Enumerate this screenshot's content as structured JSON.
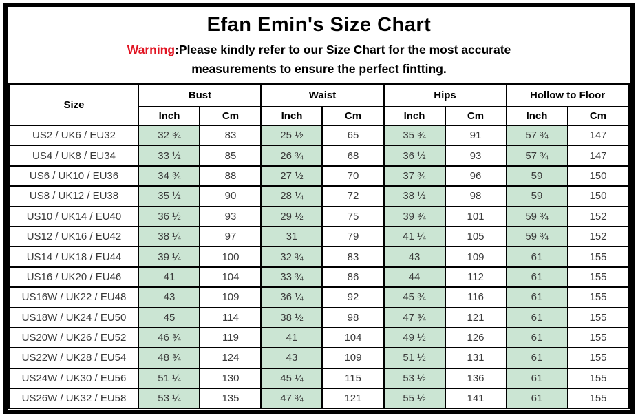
{
  "page": {
    "title": "Efan Emin's Size Chart",
    "warning": {
      "prefix": "Warning",
      "line1_rest": ":Please kindly refer to our Size Chart for the most accurate",
      "line2": "measurements to ensure the perfect fintting."
    }
  },
  "colors": {
    "accent_green": "#cbe5d3",
    "warning_red": "#e11422",
    "border_black": "#000000"
  },
  "table": {
    "size_header": "Size",
    "group_headers": [
      "Bust",
      "Waist",
      "Hips",
      "Hollow to Floor"
    ],
    "unit_headers": [
      "Inch",
      "Cm"
    ],
    "rows": [
      {
        "size": "US2 / UK6 / EU32",
        "values": [
          "32 ¾",
          "83",
          "25 ½",
          "65",
          "35 ¾",
          "91",
          "57 ¾",
          "147"
        ]
      },
      {
        "size": "US4 / UK8 / EU34",
        "values": [
          "33 ½",
          "85",
          "26 ¾",
          "68",
          "36 ½",
          "93",
          "57 ¾",
          "147"
        ]
      },
      {
        "size": "US6 / UK10 / EU36",
        "values": [
          "34 ¾",
          "88",
          "27 ½",
          "70",
          "37 ¾",
          "96",
          "59",
          "150"
        ]
      },
      {
        "size": "US8 / UK12 / EU38",
        "values": [
          "35 ½",
          "90",
          "28 ¼",
          "72",
          "38 ½",
          "98",
          "59",
          "150"
        ]
      },
      {
        "size": "US10 / UK14 / EU40",
        "values": [
          "36 ½",
          "93",
          "29 ½",
          "75",
          "39 ¾",
          "101",
          "59 ¾",
          "152"
        ]
      },
      {
        "size": "US12 / UK16 / EU42",
        "values": [
          "38 ¼",
          "97",
          "31",
          "79",
          "41 ¼",
          "105",
          "59 ¾",
          "152"
        ]
      },
      {
        "size": "US14 / UK18 / EU44",
        "values": [
          "39 ¼",
          "100",
          "32 ¾",
          "83",
          "43",
          "109",
          "61",
          "155"
        ]
      },
      {
        "size": "US16 / UK20 / EU46",
        "values": [
          "41",
          "104",
          "33 ¾",
          "86",
          "44",
          "112",
          "61",
          "155"
        ]
      },
      {
        "size": "US16W / UK22 / EU48",
        "values": [
          "43",
          "109",
          "36 ¼",
          "92",
          "45 ¾",
          "116",
          "61",
          "155"
        ]
      },
      {
        "size": "US18W / UK24 / EU50",
        "values": [
          "45",
          "114",
          "38 ½",
          "98",
          "47 ¾",
          "121",
          "61",
          "155"
        ]
      },
      {
        "size": "US20W / UK26 / EU52",
        "values": [
          "46 ¾",
          "119",
          "41",
          "104",
          "49 ½",
          "126",
          "61",
          "155"
        ]
      },
      {
        "size": "US22W / UK28 / EU54",
        "values": [
          "48 ¾",
          "124",
          "43",
          "109",
          "51 ½",
          "131",
          "61",
          "155"
        ]
      },
      {
        "size": "US24W / UK30 / EU56",
        "values": [
          "51 ¼",
          "130",
          "45 ¼",
          "115",
          "53 ½",
          "136",
          "61",
          "155"
        ]
      },
      {
        "size": "US26W / UK32 / EU58",
        "values": [
          "53 ¼",
          "135",
          "47 ¾",
          "121",
          "55 ½",
          "141",
          "61",
          "155"
        ]
      }
    ]
  }
}
